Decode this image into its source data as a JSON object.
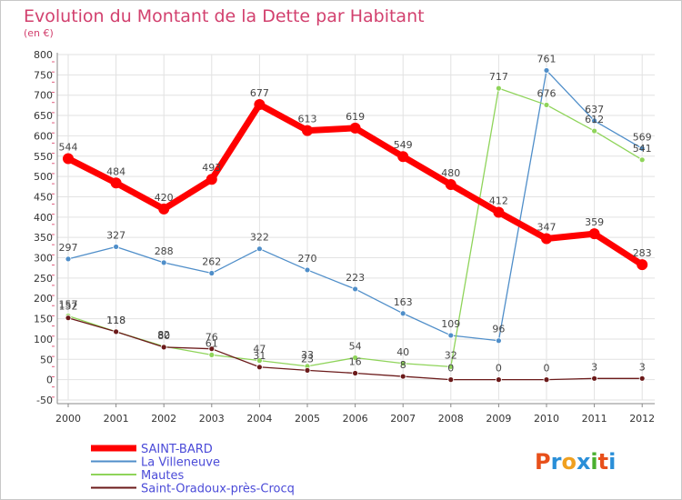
{
  "chart_data": {
    "type": "line",
    "title": "Evolution du Montant de la Dette par Habitant",
    "subtitle": "(en €)",
    "x": [
      "2000",
      "2001",
      "2002",
      "2003",
      "2004",
      "2005",
      "2006",
      "2007",
      "2008",
      "2009",
      "2010",
      "2011",
      "2012"
    ],
    "ylim": [
      -50,
      800
    ],
    "yticks": [
      -50,
      0,
      50,
      100,
      150,
      200,
      250,
      300,
      350,
      400,
      450,
      500,
      550,
      600,
      650,
      700,
      750,
      800
    ],
    "grid": true,
    "legend_position": "bottom-left",
    "series": [
      {
        "name": "SAINT-BARD",
        "color": "#ff0000",
        "values": [
          544,
          484,
          420,
          493,
          677,
          613,
          619,
          549,
          480,
          412,
          347,
          359,
          283
        ]
      },
      {
        "name": "La Villeneuve",
        "color": "#4f8ec9",
        "values": [
          297,
          327,
          288,
          262,
          322,
          270,
          223,
          163,
          109,
          96,
          761,
          637,
          569
        ]
      },
      {
        "name": "Mautes",
        "color": "#8fd45a",
        "values": [
          157,
          118,
          82,
          61,
          47,
          33,
          54,
          40,
          32,
          717,
          676,
          612,
          541
        ]
      },
      {
        "name": "Saint-Oradoux-près-Crocq",
        "color": "#6b1a1a",
        "values": [
          152,
          118,
          80,
          76,
          31,
          23,
          16,
          8,
          0,
          0,
          0,
          3,
          3
        ]
      }
    ]
  },
  "logo": {
    "text": "Proxiti"
  }
}
